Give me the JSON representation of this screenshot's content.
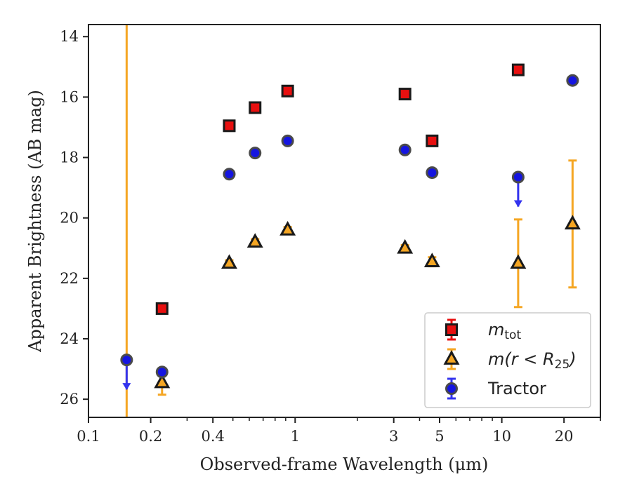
{
  "chart_data": {
    "type": "scatter",
    "title": "",
    "xlabel": "Observed-frame Wavelength (μm)",
    "ylabel": "Apparent Brightness (AB mag)",
    "x_scale": "log",
    "xlim": [
      0.1,
      30
    ],
    "ylim": [
      26.6,
      13.6
    ],
    "y_inverted": true,
    "grid": false,
    "legend_position": "lower-right",
    "x_ticks": [
      {
        "value": 0.1,
        "label": "0.1"
      },
      {
        "value": 0.2,
        "label": "0.2"
      },
      {
        "value": 0.4,
        "label": "0.4"
      },
      {
        "value": 1,
        "label": "1"
      },
      {
        "value": 3,
        "label": "3"
      },
      {
        "value": 5,
        "label": "5"
      },
      {
        "value": 10,
        "label": "10"
      },
      {
        "value": 20,
        "label": "20"
      }
    ],
    "y_ticks": [
      {
        "value": 14,
        "label": "14"
      },
      {
        "value": 16,
        "label": "16"
      },
      {
        "value": 18,
        "label": "18"
      },
      {
        "value": 20,
        "label": "20"
      },
      {
        "value": 22,
        "label": "22"
      },
      {
        "value": 24,
        "label": "24"
      },
      {
        "value": 26,
        "label": "26"
      }
    ],
    "vertical_line": {
      "x": 0.153,
      "color": "#f5a623"
    },
    "series": [
      {
        "name": "m_tot",
        "legend_main": "m",
        "legend_sub": "tot",
        "marker": "square",
        "color": "#e81010",
        "edge": "#1a1a1a",
        "errorbar_color": "#e81010",
        "points": [
          {
            "x": 0.227,
            "y": 23.0,
            "err": 0.1
          },
          {
            "x": 0.48,
            "y": 16.95,
            "err": 0.05
          },
          {
            "x": 0.64,
            "y": 16.35,
            "err": 0.05
          },
          {
            "x": 0.92,
            "y": 15.8,
            "err": 0.05
          },
          {
            "x": 3.4,
            "y": 15.9,
            "err": 0.05
          },
          {
            "x": 4.6,
            "y": 17.45,
            "err": 0.05
          },
          {
            "x": 12.0,
            "y": 15.1,
            "err": 0.05
          }
        ]
      },
      {
        "name": "m(r < R25)",
        "legend_main": "m(r < R",
        "legend_sub": "25",
        "legend_tail": ")",
        "marker": "triangle",
        "color": "#f5a623",
        "edge": "#1a1a1a",
        "errorbar_color": "#f5a623",
        "points": [
          {
            "x": 0.227,
            "y": 25.45,
            "err": 0.4
          },
          {
            "x": 0.48,
            "y": 21.5,
            "err": 0.1
          },
          {
            "x": 0.64,
            "y": 20.8,
            "err": 0.1
          },
          {
            "x": 0.92,
            "y": 20.4,
            "err": 0.1
          },
          {
            "x": 3.4,
            "y": 21.0,
            "err": 0.1
          },
          {
            "x": 4.6,
            "y": 21.45,
            "err": 0.15
          },
          {
            "x": 12.0,
            "y": 21.5,
            "err": 1.45
          },
          {
            "x": 22.0,
            "y": 20.2,
            "err": 2.1
          }
        ]
      },
      {
        "name": "Tractor",
        "legend_main": "Tractor",
        "marker": "circle",
        "color": "#1515e0",
        "edge": "#4a4a4a",
        "errorbar_color": "#3333ee",
        "points": [
          {
            "x": 0.153,
            "y": 24.7,
            "err": 0.05,
            "upper_limit": true
          },
          {
            "x": 0.227,
            "y": 25.1,
            "err": 0.05
          },
          {
            "x": 0.48,
            "y": 18.55,
            "err": 0.05
          },
          {
            "x": 0.64,
            "y": 17.85,
            "err": 0.05
          },
          {
            "x": 0.92,
            "y": 17.45,
            "err": 0.05
          },
          {
            "x": 3.4,
            "y": 17.75,
            "err": 0.05
          },
          {
            "x": 4.6,
            "y": 18.5,
            "err": 0.05
          },
          {
            "x": 12.0,
            "y": 18.65,
            "err": 0.05,
            "upper_limit": true
          },
          {
            "x": 22.0,
            "y": 15.45,
            "err": 0.05
          }
        ]
      }
    ]
  }
}
